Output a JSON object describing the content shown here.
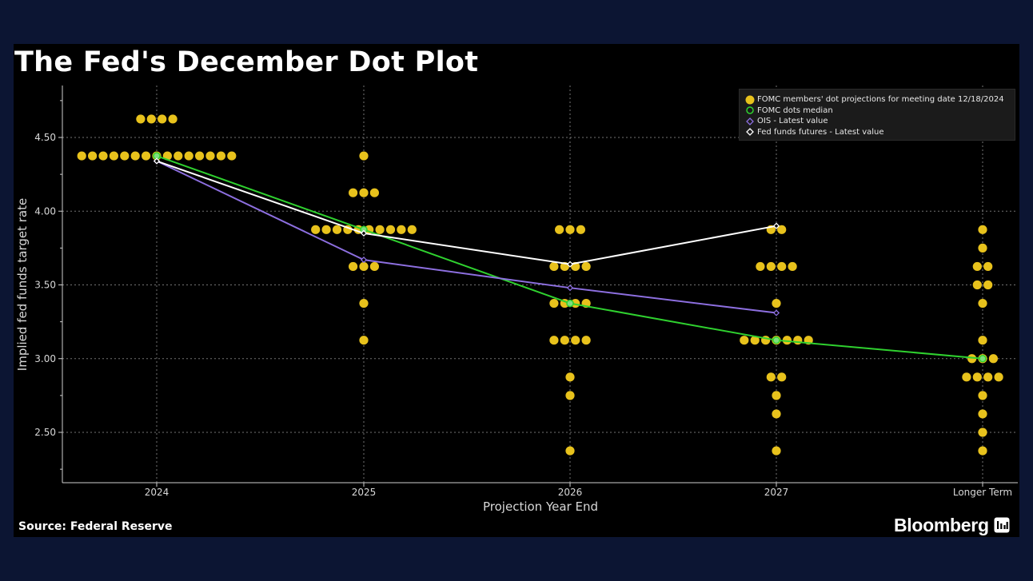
{
  "title": "The Fed's December Dot Plot",
  "source": "Source: Federal Reserve",
  "brand": "Bloomberg",
  "colors": {
    "background": "#000000",
    "dots": "#e8c21c",
    "median": "#2fd12f",
    "ois": "#8d6fe0",
    "futures": "#ffffff",
    "grid": "#9a9a9a"
  },
  "legend": [
    {
      "label": "FOMC members' dot projections for meeting date 12/18/2024",
      "symbol": "dot-icon"
    },
    {
      "label": "FOMC dots median",
      "symbol": "median-icon"
    },
    {
      "label": "OIS - Latest value",
      "symbol": "ois-icon"
    },
    {
      "label": "Fed funds futures - Latest value",
      "symbol": "futures-icon"
    }
  ],
  "chart_data": {
    "type": "scatter",
    "title": "The Fed's December Dot Plot",
    "xlabel": "Projection Year End",
    "ylabel": "Implied fed funds target rate",
    "categories": [
      "2024",
      "2025",
      "2026",
      "2027",
      "Longer Term"
    ],
    "ylim": [
      2.2,
      4.9
    ],
    "yticks": [
      2.5,
      3.0,
      3.5,
      4.0,
      4.5
    ],
    "ytick_labels": [
      "2.50",
      "3.00",
      "3.50",
      "4.00",
      "4.50"
    ],
    "grid": true,
    "legend_position": "top-right",
    "dots": [
      [
        {
          "rate": 4.625,
          "count": 4
        },
        {
          "rate": 4.375,
          "count": 15
        }
      ],
      [
        {
          "rate": 4.375,
          "count": 1
        },
        {
          "rate": 4.125,
          "count": 3
        },
        {
          "rate": 3.875,
          "count": 10
        },
        {
          "rate": 3.625,
          "count": 3
        },
        {
          "rate": 3.375,
          "count": 1
        },
        {
          "rate": 3.125,
          "count": 1
        }
      ],
      [
        {
          "rate": 3.875,
          "count": 3
        },
        {
          "rate": 3.625,
          "count": 4
        },
        {
          "rate": 3.375,
          "count": 4
        },
        {
          "rate": 3.125,
          "count": 4
        },
        {
          "rate": 2.875,
          "count": 1
        },
        {
          "rate": 2.75,
          "count": 1
        },
        {
          "rate": 2.375,
          "count": 1
        }
      ],
      [
        {
          "rate": 3.875,
          "count": 2
        },
        {
          "rate": 3.625,
          "count": 4
        },
        {
          "rate": 3.375,
          "count": 1
        },
        {
          "rate": 3.125,
          "count": 7
        },
        {
          "rate": 2.875,
          "count": 2
        },
        {
          "rate": 2.75,
          "count": 1
        },
        {
          "rate": 2.625,
          "count": 1
        },
        {
          "rate": 2.375,
          "count": 1
        }
      ],
      [
        {
          "rate": 3.875,
          "count": 1
        },
        {
          "rate": 3.75,
          "count": 1
        },
        {
          "rate": 3.625,
          "count": 2
        },
        {
          "rate": 3.5,
          "count": 2
        },
        {
          "rate": 3.375,
          "count": 1
        },
        {
          "rate": 3.125,
          "count": 1
        },
        {
          "rate": 3.0,
          "count": 3
        },
        {
          "rate": 2.875,
          "count": 4
        },
        {
          "rate": 2.75,
          "count": 1
        },
        {
          "rate": 2.625,
          "count": 1
        },
        {
          "rate": 2.5,
          "count": 1
        },
        {
          "rate": 2.375,
          "count": 1
        }
      ]
    ],
    "series": [
      {
        "name": "FOMC dots median",
        "values": [
          4.375,
          3.875,
          3.375,
          3.125,
          3.0
        ]
      },
      {
        "name": "OIS - Latest value",
        "values": [
          4.34,
          3.67,
          3.48,
          3.31,
          null
        ]
      },
      {
        "name": "Fed funds futures - Latest value",
        "values": [
          4.34,
          3.85,
          3.64,
          3.9,
          null
        ]
      }
    ]
  }
}
